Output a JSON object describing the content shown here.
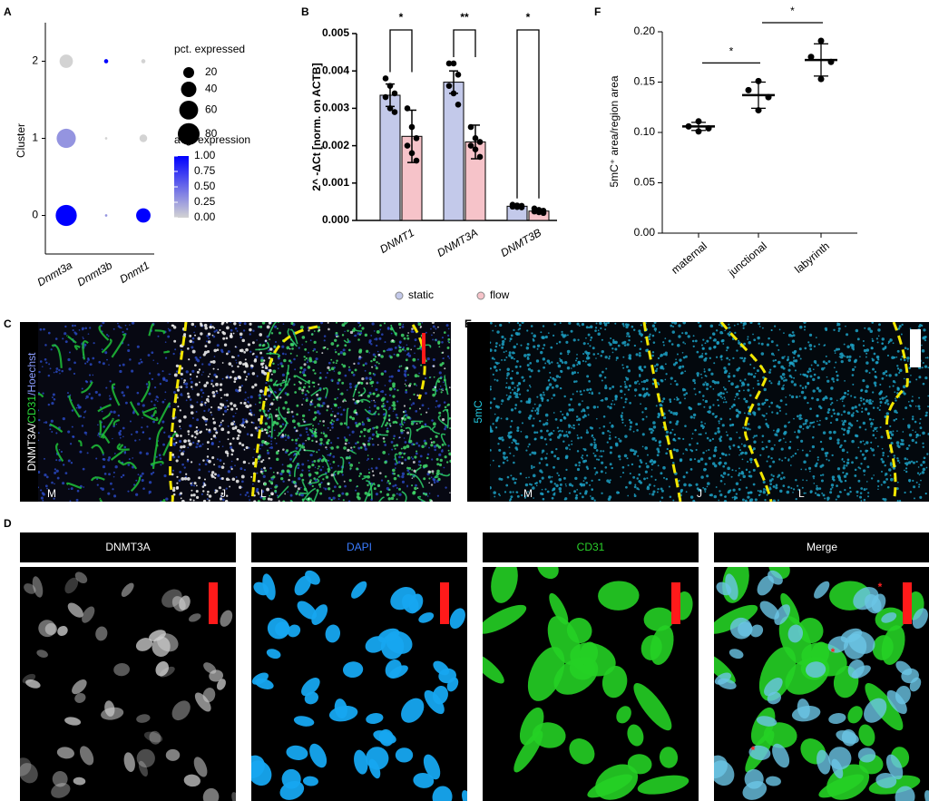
{
  "chart_data": [
    {
      "panel": "A",
      "type": "dot",
      "y_label": "Cluster",
      "categories": [
        "Dnmt3a",
        "Dnmt3b",
        "Dnmt1"
      ],
      "pct_expressed": [
        [
          75,
          62,
          30
        ],
        [
          1,
          1,
          3
        ],
        [
          35,
          10,
          3
        ]
      ],
      "avg_expression": [
        [
          1.0,
          0.3,
          0.0
        ],
        [
          0.3,
          0.0,
          1.0
        ],
        [
          1.0,
          0.0,
          0.0
        ]
      ],
      "ylim": [
        -0.5,
        2.5
      ],
      "yticks": [
        0,
        1,
        2
      ],
      "size_legend_title": "pct. expressed",
      "size_legend": [
        20,
        40,
        60,
        80
      ],
      "color_legend_title": "avg. expression",
      "colorlim": [
        0,
        1
      ],
      "colorticks": [
        {
          "value": 0,
          "label": "0.00"
        },
        {
          "value": 0.25,
          "label": "0.25"
        },
        {
          "value": 0.5,
          "label": "0.50"
        },
        {
          "value": 0.75,
          "label": "0.75"
        },
        {
          "value": 1,
          "label": "1.00"
        }
      ],
      "color_low": "#d3d3d3",
      "color_high": "#0000ff"
    },
    {
      "panel": "B",
      "type": "bar",
      "y_label": "2^ -ΔCt [norm. on ACTB]",
      "categories": [
        "DNMT1",
        "DNMT3A",
        "DNMT3B"
      ],
      "series": [
        {
          "name": "static",
          "color": "#c3c9ea",
          "values": [
            0.00335,
            0.0037,
            0.00038
          ],
          "errors": [
            0.0003,
            0.0003,
            3e-05
          ],
          "points": [
            [
              0.0038,
              0.0036,
              0.0034,
              0.0033,
              0.003,
              0.0029
            ],
            [
              0.0042,
              0.0042,
              0.0039,
              0.0036,
              0.0034,
              0.0031
            ],
            [
              0.00042,
              0.0004,
              0.00039,
              0.00037,
              0.00036,
              0.00035
            ]
          ]
        },
        {
          "name": "flow",
          "color": "#f6c3c9",
          "values": [
            0.00225,
            0.0021,
            0.00025
          ],
          "errors": [
            0.0007,
            0.00045,
            4e-05
          ],
          "points": [
            [
              0.003,
              0.0025,
              0.0022,
              0.002,
              0.0018,
              0.0016
            ],
            [
              0.0025,
              0.0022,
              0.0021,
              0.002,
              0.0019,
              0.0017
            ],
            [
              0.00032,
              0.00028,
              0.00026,
              0.00024,
              0.00022,
              0.0002
            ]
          ]
        }
      ],
      "significance": [
        "*",
        "**",
        "*"
      ],
      "ylim": [
        0,
        0.005
      ],
      "yticks": [
        {
          "value": 0,
          "label": "0.000"
        },
        {
          "value": 0.001,
          "label": "0.001"
        },
        {
          "value": 0.002,
          "label": "0.002"
        },
        {
          "value": 0.003,
          "label": "0.003"
        },
        {
          "value": 0.004,
          "label": "0.004"
        },
        {
          "value": 0.005,
          "label": "0.005"
        }
      ]
    },
    {
      "panel": "F",
      "type": "strip",
      "y_label": "5mC⁺ area/region area",
      "categories": [
        "maternal",
        "junctional",
        "labyrinth"
      ],
      "points": [
        [
          0.111,
          0.106,
          0.104,
          0.101
        ],
        [
          0.151,
          0.142,
          0.135,
          0.122
        ],
        [
          0.191,
          0.175,
          0.17,
          0.153
        ]
      ],
      "mean": [
        0.106,
        0.137,
        0.172
      ],
      "sd": [
        0.004,
        0.013,
        0.016
      ],
      "significance": [
        "*",
        "*"
      ],
      "ylim": [
        0,
        0.2
      ],
      "yticks": [
        {
          "value": 0,
          "label": "0.00"
        },
        {
          "value": 0.05,
          "label": "0.05"
        },
        {
          "value": 0.1,
          "label": "0.10"
        },
        {
          "value": 0.15,
          "label": "0.15"
        },
        {
          "value": 0.2,
          "label": "0.20"
        }
      ]
    }
  ],
  "panel_C": {
    "panel": "C",
    "channel_label": [
      {
        "text": "DNMT3A/",
        "color": "#ffffff"
      },
      {
        "text": "CD31",
        "color": "#2add3a"
      },
      {
        "text": "/Hoechst",
        "color": "#8a9cff"
      }
    ],
    "regions": [
      "M",
      "J",
      "L"
    ]
  },
  "panel_E": {
    "panel": "E",
    "channel_label": "5mC",
    "color": "#22c8e0",
    "regions": [
      "M",
      "J",
      "L"
    ]
  },
  "panel_D": {
    "panel": "D",
    "headers": [
      {
        "text": "DNMT3A",
        "color": "#ffffff"
      },
      {
        "text": "DAPI",
        "color": "#3a7cff"
      },
      {
        "text": "CD31",
        "color": "#2ad12a"
      },
      {
        "text": "Merge",
        "color": "#ffffff"
      }
    ],
    "markers": [
      "*",
      "*",
      "*"
    ]
  }
}
